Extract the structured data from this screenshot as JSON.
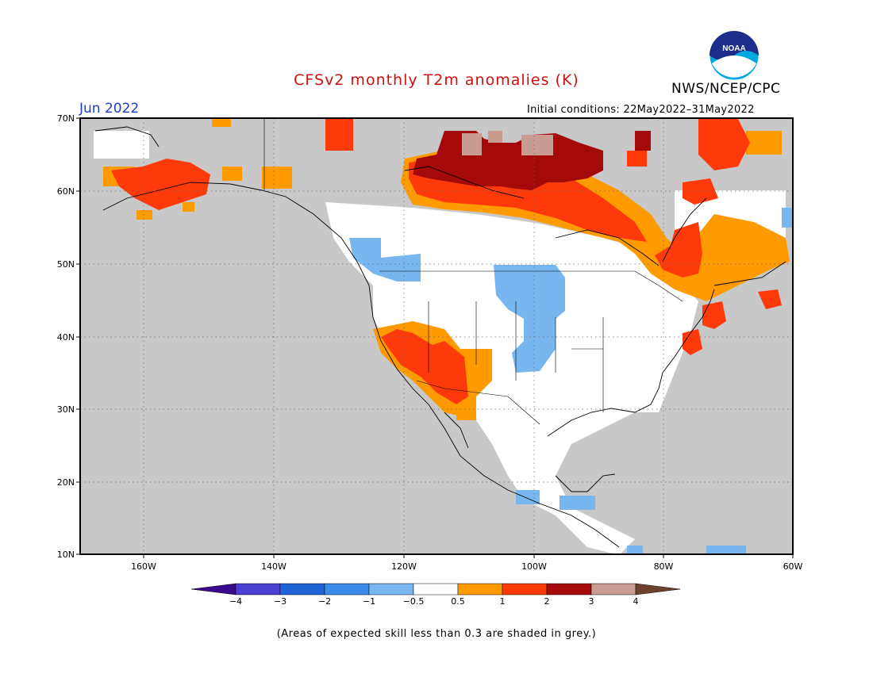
{
  "title": "CFSv2 monthly T2m anomalies (K)",
  "organization": "NWS/NCEP/CPC",
  "logo_text": "NOAA",
  "forecast_month": "Jun 2022",
  "initial_conditions": "Initial conditions: 22May2022–31May2022",
  "lat_labels": [
    "70N",
    "60N",
    "50N",
    "40N",
    "30N",
    "20N",
    "10N"
  ],
  "lon_labels": [
    "160W",
    "140W",
    "120W",
    "100W",
    "80W",
    "60W"
  ],
  "colorbar": {
    "tick_labels": [
      "−4",
      "−3",
      "−2",
      "−1",
      "−0.5",
      "0.5",
      "1",
      "2",
      "3",
      "4"
    ],
    "colors": [
      "#3a0a8c",
      "#4a3fd0",
      "#1f64d6",
      "#3a8be8",
      "#78b6f0",
      "#ffffff",
      "#ff9a00",
      "#ff3a0a",
      "#a50a0a",
      "#c89c90",
      "#6e4030"
    ]
  },
  "footnote": "(Areas of expected skill less than 0.3 are shaded in grey.)",
  "colors": {
    "skill_grey": "#c8c8c8",
    "title_red": "#d01010",
    "month_blue": "#1a3ec8"
  }
}
